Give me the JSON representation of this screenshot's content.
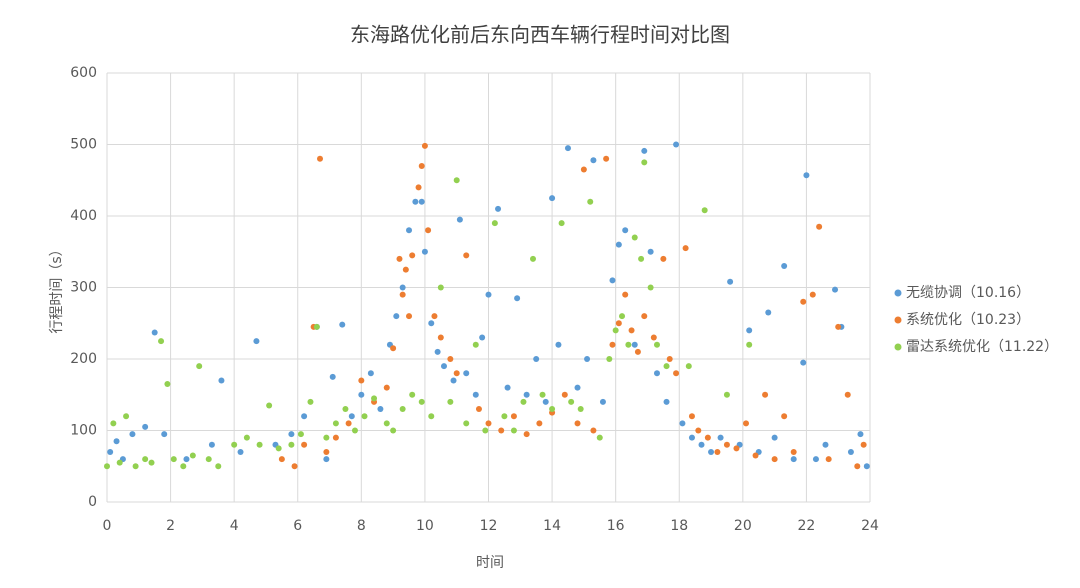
{
  "chart_data": {
    "type": "scatter",
    "title": "东海路优化前后东向西车辆行程时间对比图",
    "x_label": "时间",
    "y_label": "行程时间（s）",
    "xlim": [
      0,
      24
    ],
    "xticks": [
      0,
      2,
      4,
      6,
      8,
      10,
      12,
      14,
      16,
      18,
      20,
      22,
      24
    ],
    "ylim": [
      0,
      600
    ],
    "yticks": [
      0,
      100,
      200,
      300,
      400,
      500,
      600
    ],
    "grid": true,
    "legend": "right",
    "series": [
      {
        "name": "无缆协调（10.16）",
        "color": "#5b9bd5",
        "x": [
          0.1,
          0.3,
          0.5,
          0.8,
          1.2,
          1.5,
          1.8,
          2.5,
          3.3,
          3.6,
          4.2,
          4.7,
          5.3,
          5.8,
          6.2,
          6.6,
          6.9,
          7.1,
          7.4,
          7.7,
          8.0,
          8.3,
          8.6,
          8.9,
          9.1,
          9.3,
          9.5,
          9.7,
          9.9,
          10.0,
          10.2,
          10.4,
          10.6,
          10.9,
          11.1,
          11.3,
          11.6,
          11.8,
          12.0,
          12.3,
          12.6,
          12.9,
          13.2,
          13.5,
          13.8,
          14.0,
          14.2,
          14.5,
          14.8,
          15.1,
          15.3,
          15.6,
          15.9,
          16.1,
          16.3,
          16.6,
          16.9,
          17.1,
          17.3,
          17.6,
          17.9,
          18.1,
          18.4,
          18.7,
          19.0,
          19.3,
          19.6,
          19.9,
          20.2,
          20.5,
          20.8,
          21.0,
          21.3,
          21.6,
          21.9,
          22.0,
          22.3,
          22.6,
          22.9,
          23.1,
          23.4,
          23.7,
          23.9
        ],
        "values": [
          70,
          85,
          60,
          95,
          105,
          237,
          95,
          60,
          80,
          170,
          70,
          225,
          80,
          95,
          120,
          245,
          60,
          175,
          248,
          120,
          150,
          180,
          130,
          220,
          260,
          300,
          380,
          420,
          420,
          350,
          250,
          210,
          190,
          170,
          395,
          180,
          150,
          230,
          290,
          410,
          160,
          285,
          150,
          200,
          140,
          425,
          220,
          495,
          160,
          200,
          478,
          140,
          310,
          360,
          380,
          220,
          491,
          350,
          180,
          140,
          500,
          110,
          90,
          80,
          70,
          90,
          308,
          80,
          240,
          70,
          265,
          90,
          330,
          60,
          195,
          457,
          60,
          80,
          297,
          245,
          70,
          95,
          50
        ]
      },
      {
        "name": "系统优化（10.23）",
        "color": "#ed7d31",
        "x": [
          5.5,
          5.9,
          6.2,
          6.5,
          6.7,
          6.9,
          7.2,
          7.6,
          8.0,
          8.4,
          8.8,
          9.0,
          9.2,
          9.3,
          9.4,
          9.5,
          9.6,
          9.8,
          9.9,
          10.0,
          10.1,
          10.3,
          10.5,
          10.8,
          11.0,
          11.3,
          11.7,
          12.0,
          12.4,
          12.8,
          13.2,
          13.6,
          14.0,
          14.4,
          14.8,
          15.0,
          15.3,
          15.7,
          15.9,
          16.1,
          16.3,
          16.5,
          16.7,
          16.9,
          17.2,
          17.5,
          17.7,
          17.9,
          18.2,
          18.4,
          18.6,
          18.9,
          19.2,
          19.5,
          19.8,
          20.1,
          20.4,
          20.7,
          21.0,
          21.3,
          21.6,
          21.9,
          22.2,
          22.4,
          22.7,
          23.0,
          23.3,
          23.6,
          23.8
        ],
        "values": [
          60,
          50,
          80,
          245,
          480,
          70,
          90,
          110,
          170,
          140,
          160,
          215,
          340,
          290,
          325,
          260,
          345,
          440,
          470,
          498,
          380,
          260,
          230,
          200,
          180,
          345,
          130,
          110,
          100,
          120,
          95,
          110,
          125,
          150,
          110,
          465,
          100,
          480,
          220,
          250,
          290,
          240,
          210,
          260,
          230,
          340,
          200,
          180,
          355,
          120,
          100,
          90,
          70,
          80,
          75,
          110,
          65,
          150,
          60,
          120,
          70,
          280,
          290,
          385,
          60,
          245,
          150,
          50,
          80
        ]
      },
      {
        "name": "雷达系统优化（11.22）",
        "color": "#92d050",
        "x": [
          0.0,
          0.2,
          0.4,
          0.6,
          0.9,
          1.2,
          1.4,
          1.7,
          1.9,
          2.1,
          2.4,
          2.7,
          2.9,
          3.2,
          3.5,
          4.0,
          4.4,
          4.8,
          5.1,
          5.4,
          5.8,
          6.1,
          6.4,
          6.6,
          6.9,
          7.2,
          7.5,
          7.8,
          8.1,
          8.4,
          8.8,
          9.0,
          9.3,
          9.6,
          9.9,
          10.2,
          10.5,
          10.8,
          11.0,
          11.3,
          11.6,
          11.9,
          12.2,
          12.5,
          12.8,
          13.1,
          13.4,
          13.7,
          14.0,
          14.3,
          14.6,
          14.9,
          15.2,
          15.5,
          15.8,
          16.0,
          16.2,
          16.4,
          16.6,
          16.8,
          16.9,
          17.1,
          17.3,
          17.6,
          18.3,
          18.8,
          19.5,
          20.2
        ],
        "values": [
          50,
          110,
          55,
          120,
          50,
          60,
          55,
          225,
          165,
          60,
          50,
          65,
          190,
          60,
          50,
          80,
          90,
          80,
          135,
          75,
          80,
          95,
          140,
          245,
          90,
          110,
          130,
          100,
          120,
          145,
          110,
          100,
          130,
          150,
          140,
          120,
          300,
          140,
          450,
          110,
          220,
          100,
          390,
          120,
          100,
          140,
          340,
          150,
          130,
          390,
          140,
          130,
          420,
          90,
          200,
          240,
          260,
          220,
          370,
          340,
          475,
          300,
          220,
          190,
          190,
          408,
          150,
          220
        ]
      }
    ]
  }
}
